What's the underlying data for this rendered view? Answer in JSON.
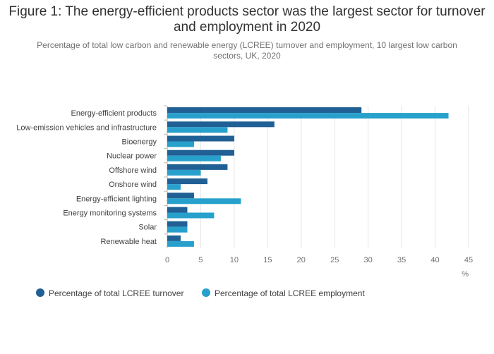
{
  "title": "Figure 1: The energy-efficient products sector was the largest sector for turnover and employment in 2020",
  "subtitle": "Percentage of total low carbon and renewable energy (LCREE) turnover and employment, 10 largest low carbon sectors, UK, 2020",
  "colors": {
    "turnover": "#206095",
    "employment": "#27a0cc",
    "grid": "#e6e6e6"
  },
  "chart_data": {
    "type": "bar",
    "orientation": "horizontal",
    "categories": [
      "Energy-efficient products",
      "Low-emission vehicles and infrastructure",
      "Bioenergy",
      "Nuclear power",
      "Offshore wind",
      "Onshore wind",
      "Energy-efficient lighting",
      "Energy monitoring systems",
      "Solar",
      "Renewable heat"
    ],
    "series": [
      {
        "name": "Percentage of total LCREE turnover",
        "values": [
          29,
          16,
          10,
          10,
          9,
          6,
          4,
          3,
          3,
          2
        ]
      },
      {
        "name": "Percentage of total LCREE employment",
        "values": [
          42,
          9,
          4,
          8,
          5,
          2,
          11,
          7,
          3,
          4
        ]
      }
    ],
    "xlim": [
      0,
      45
    ],
    "xticks": [
      "0",
      "5",
      "10",
      "15",
      "20",
      "25",
      "30",
      "35",
      "40",
      "45"
    ],
    "xunit": "%",
    "grid": true,
    "legend_position": "bottom-left"
  }
}
